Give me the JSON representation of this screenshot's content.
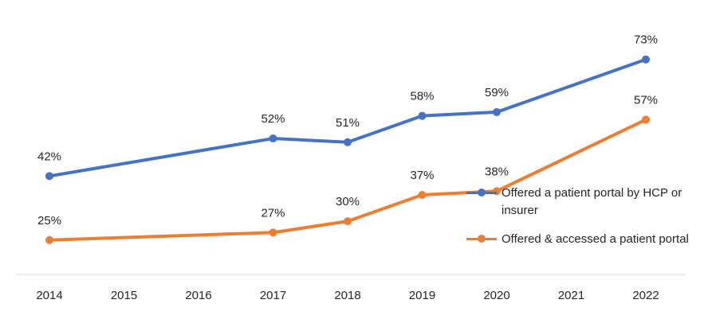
{
  "chart_data": {
    "type": "line",
    "x": [
      "2014",
      "2015",
      "2016",
      "2017",
      "2018",
      "2019",
      "2020",
      "2021",
      "2022"
    ],
    "series": [
      {
        "name": "Offered a patient portal by HCP or insurer",
        "color": "#4472C4",
        "points": [
          {
            "x": "2014",
            "y": 42,
            "label": "42%"
          },
          {
            "x": "2017",
            "y": 52,
            "label": "52%"
          },
          {
            "x": "2018",
            "y": 51,
            "label": "51%"
          },
          {
            "x": "2019",
            "y": 58,
            "label": "58%"
          },
          {
            "x": "2020",
            "y": 59,
            "label": "59%"
          },
          {
            "x": "2022",
            "y": 73,
            "label": "73%"
          }
        ]
      },
      {
        "name": "Offered & accessed a patient portal",
        "color": "#ED7D31",
        "points": [
          {
            "x": "2014",
            "y": 25,
            "label": "25%"
          },
          {
            "x": "2017",
            "y": 27,
            "label": "27%"
          },
          {
            "x": "2018",
            "y": 30,
            "label": "30%"
          },
          {
            "x": "2019",
            "y": 37,
            "label": "37%"
          },
          {
            "x": "2020",
            "y": 38,
            "label": "38%"
          },
          {
            "x": "2022",
            "y": 57,
            "label": "57%"
          }
        ]
      }
    ],
    "ylim": [
      0,
      80
    ],
    "grid": false,
    "legend_position": "right"
  },
  "legend": {
    "item_1": "Offered a patient portal by HCP or insurer",
    "item_2": "Offered & accessed a patient portal"
  }
}
